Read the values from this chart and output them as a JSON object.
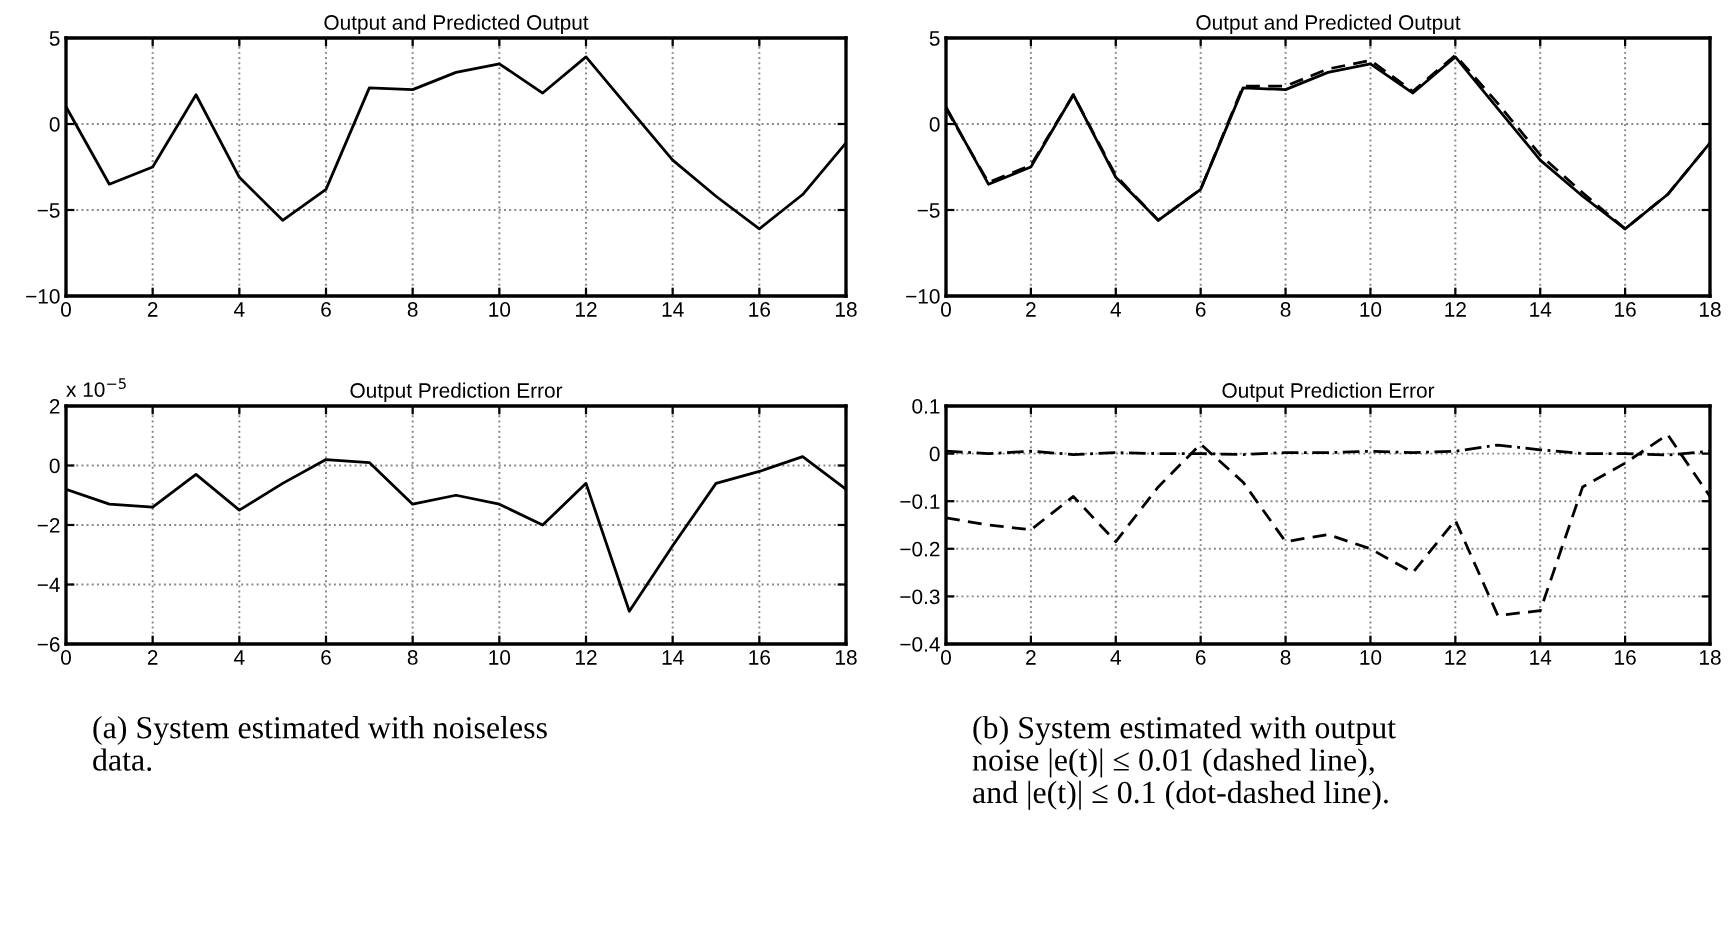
{
  "chart_data": [
    {
      "type": "line",
      "title": "Output and Predicted Output",
      "x": [
        0,
        1,
        2,
        3,
        4,
        5,
        6,
        7,
        8,
        9,
        10,
        11,
        12,
        13,
        14,
        15,
        16,
        17,
        18
      ],
      "xlim": [
        0,
        18
      ],
      "xticks": [
        0,
        2,
        4,
        6,
        8,
        10,
        12,
        14,
        16,
        18
      ],
      "ylim": [
        -10,
        5
      ],
      "yticks": [
        {
          "value": -10,
          "label": "−10"
        },
        {
          "value": -5,
          "label": "−5"
        },
        0,
        5
      ],
      "grid": true,
      "legend": false,
      "series": [
        {
          "color": "#000000",
          "line_style": "solid",
          "values": [
            1.0,
            -3.5,
            -2.5,
            1.7,
            -3.1,
            -5.6,
            -3.8,
            2.1,
            2.0,
            3.0,
            3.5,
            1.8,
            3.9,
            0.9,
            -2.1,
            -4.2,
            -6.1,
            -4.1,
            -1.1
          ]
        }
      ]
    },
    {
      "type": "line",
      "title": "Output and Predicted Output",
      "x": [
        0,
        1,
        2,
        3,
        4,
        5,
        6,
        7,
        8,
        9,
        10,
        11,
        12,
        13,
        14,
        15,
        16,
        17,
        18
      ],
      "xlim": [
        0,
        18
      ],
      "xticks": [
        0,
        2,
        4,
        6,
        8,
        10,
        12,
        14,
        16,
        18
      ],
      "ylim": [
        -10,
        5
      ],
      "yticks": [
        {
          "value": -10,
          "label": "−10"
        },
        {
          "value": -5,
          "label": "−5"
        },
        0,
        5
      ],
      "grid": true,
      "legend": false,
      "series": [
        {
          "color": "#000000",
          "line_style": "solid",
          "values": [
            1.0,
            -3.5,
            -2.5,
            1.7,
            -3.1,
            -5.6,
            -3.8,
            2.1,
            2.0,
            3.0,
            3.5,
            1.8,
            3.9,
            0.9,
            -2.1,
            -4.2,
            -6.1,
            -4.1,
            -1.1
          ]
        },
        {
          "color": "#000000",
          "line_style": "dashed",
          "values": [
            0.9,
            -3.4,
            -2.4,
            1.7,
            -3.0,
            -5.6,
            -3.8,
            2.2,
            2.2,
            3.2,
            3.7,
            1.9,
            4.0,
            1.2,
            -1.8,
            -4.0,
            -6.1,
            -4.1,
            -1.1
          ]
        }
      ],
      "annotations": [
        "(b) System estimated with output\nnoise |e(t)| ≤ 0.01 (dashed line),\nand |e(t)| ≤ 0.1 (dot-dashed line)."
      ]
    },
    {
      "type": "line",
      "title": "Output Prediction Error",
      "x": [
        0,
        1,
        2,
        3,
        4,
        5,
        6,
        7,
        8,
        9,
        10,
        11,
        12,
        13,
        14,
        15,
        16,
        17,
        18
      ],
      "xlim": [
        0,
        18
      ],
      "xticks": [
        0,
        2,
        4,
        6,
        8,
        10,
        12,
        14,
        16,
        18
      ],
      "ylim": [
        -6,
        2
      ],
      "yticks": [
        {
          "value": -6,
          "label": "−6"
        },
        {
          "value": -4,
          "label": "−4"
        },
        {
          "value": -2,
          "label": "−2"
        },
        0,
        2
      ],
      "grid": true,
      "legend": false,
      "series": [
        {
          "color": "#000000",
          "line_style": "solid",
          "values": [
            -0.8,
            -1.3,
            -1.4,
            -0.3,
            -1.5,
            -0.6,
            0.2,
            0.1,
            -1.3,
            -1.0,
            -1.3,
            -2.0,
            -0.6,
            -4.9,
            -2.7,
            -0.6,
            -0.2,
            0.3,
            -0.8
          ]
        }
      ],
      "annotations": [
        "x 10$^{−5}$",
        "(a) System estimated with noiseless\ndata."
      ]
    },
    {
      "type": "line",
      "title": "Output Prediction Error",
      "x": [
        0,
        1,
        2,
        3,
        4,
        5,
        6,
        7,
        8,
        9,
        10,
        11,
        12,
        13,
        14,
        15,
        16,
        17,
        18
      ],
      "xlim": [
        0,
        18
      ],
      "xticks": [
        0,
        2,
        4,
        6,
        8,
        10,
        12,
        14,
        16,
        18
      ],
      "ylim": [
        -0.4,
        0.1
      ],
      "yticks": [
        {
          "value": -0.4,
          "label": "−0.4"
        },
        {
          "value": -0.3,
          "label": "−0.3"
        },
        {
          "value": -0.2,
          "label": "−0.2"
        },
        {
          "value": -0.1,
          "label": "−0.1"
        },
        0,
        0.1
      ],
      "grid": true,
      "legend": false,
      "series": [
        {
          "color": "#000000",
          "line_style": "dashed",
          "values": [
            -0.135,
            -0.15,
            -0.16,
            -0.09,
            -0.185,
            -0.07,
            0.02,
            -0.06,
            -0.185,
            -0.17,
            -0.2,
            -0.25,
            -0.14,
            -0.34,
            -0.33,
            -0.07,
            -0.02,
            0.04,
            -0.09
          ]
        },
        {
          "color": "#000000",
          "line_style": "dashdot",
          "values": [
            0.005,
            0,
            0.005,
            -0.002,
            0.002,
            0,
            0,
            -0.002,
            0.002,
            0.002,
            0.005,
            0.002,
            0.005,
            0.018,
            0.008,
            0,
            0,
            -0.003,
            0.005
          ]
        }
      ]
    }
  ]
}
